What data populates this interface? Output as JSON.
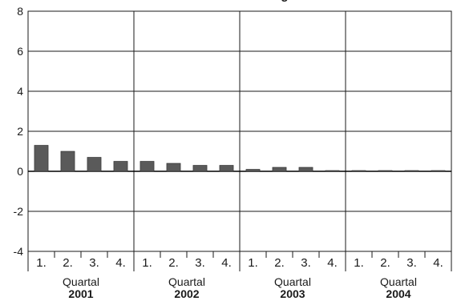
{
  "chart_data": {
    "type": "bar",
    "title": "",
    "title_fragment": "g",
    "xlabel": "",
    "ylabel": "",
    "ylim": [
      -4,
      8
    ],
    "yticks": [
      "8",
      "6",
      "4",
      "2",
      "0",
      "-2",
      "-4"
    ],
    "grid": true,
    "bar_color": "#5a5a5a",
    "groups": [
      {
        "label": "Quartal",
        "year": "2001",
        "quarters": [
          "1.",
          "2.",
          "3.",
          "4."
        ],
        "values": [
          1.3,
          1.0,
          0.7,
          0.5
        ]
      },
      {
        "label": "Quartal",
        "year": "2002",
        "quarters": [
          "1.",
          "2.",
          "3.",
          "4."
        ],
        "values": [
          0.5,
          0.4,
          0.3,
          0.3
        ]
      },
      {
        "label": "Quartal",
        "year": "2003",
        "quarters": [
          "1.",
          "2.",
          "3.",
          "4."
        ],
        "values": [
          0.1,
          0.2,
          0.2,
          0.0
        ]
      },
      {
        "label": "Quartal",
        "year": "2004",
        "quarters": [
          "1.",
          "2.",
          "3.",
          "4."
        ],
        "values": [
          0.0,
          0.0,
          0.0,
          0.0
        ]
      }
    ]
  }
}
